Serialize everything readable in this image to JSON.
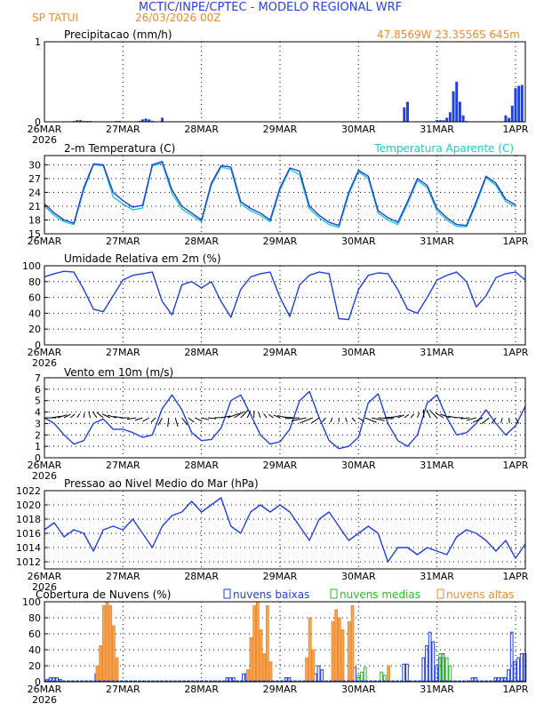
{
  "header": {
    "title": "MCTIC/INPE/CPTEC - MODELO REGIONAL WRF",
    "location": "SP TATUI",
    "run": "26/03/2026 00Z",
    "coords": "47.8569W 23.3556S 645m"
  },
  "dates": [
    "26MAR",
    "27MAR",
    "28MAR",
    "29MAR",
    "30MAR",
    "31MAR",
    "1APR"
  ],
  "year": "2026",
  "colors": {
    "blue": "#1f3fe0",
    "orange": "#f08a2a",
    "green": "#22c022",
    "cyan": "#20c8c8",
    "title": "#2a3ee8"
  },
  "chart_data": [
    {
      "type": "bar",
      "title": "Precipitacao (mm/h)",
      "ylim": [
        0,
        1
      ],
      "yticks": [
        0,
        1
      ],
      "x_unit": "hours since 26MAR 00Z",
      "x": [
        9,
        10,
        11,
        12,
        13,
        14,
        15,
        22,
        23,
        29,
        30,
        31,
        32,
        33,
        36,
        110,
        111,
        120,
        121,
        122,
        123,
        124,
        125,
        126,
        127,
        128,
        129,
        141,
        142,
        143,
        144,
        145,
        146
      ],
      "values": [
        0.01,
        0.02,
        0.02,
        0.01,
        0.01,
        0.01,
        0.0,
        0.01,
        0.01,
        0.01,
        0.03,
        0.04,
        0.03,
        0.01,
        0.05,
        0.18,
        0.25,
        0.02,
        0.02,
        0.02,
        0.05,
        0.12,
        0.38,
        0.5,
        0.25,
        0.08,
        0.01,
        0.08,
        0.05,
        0.2,
        0.42,
        0.45,
        0.46
      ]
    },
    {
      "type": "line",
      "title": "2-m Temperatura (C)",
      "ylim": [
        15,
        32
      ],
      "yticks": [
        15,
        18,
        21,
        24,
        27,
        30
      ],
      "x": [
        0,
        3,
        6,
        9,
        12,
        15,
        18,
        21,
        24,
        27,
        30,
        33,
        36,
        39,
        42,
        45,
        48,
        51,
        54,
        57,
        60,
        63,
        66,
        69,
        72,
        75,
        78,
        81,
        84,
        87,
        90,
        93,
        96,
        99,
        102,
        105,
        108,
        111,
        114,
        117,
        120,
        123,
        126,
        129,
        132,
        135,
        138,
        141,
        144
      ],
      "series": [
        {
          "name": "2-m Temperatura (C)",
          "color": "#1f3fe0",
          "values": [
            21.5,
            19.5,
            18.0,
            17.3,
            25.0,
            30.2,
            30.0,
            24.0,
            22.2,
            20.8,
            21.2,
            30.0,
            30.7,
            24.5,
            21.0,
            19.5,
            18.0,
            26.0,
            29.8,
            29.5,
            22.0,
            20.5,
            19.5,
            18.0,
            25.0,
            29.3,
            28.6,
            21.0,
            19.0,
            17.5,
            16.8,
            24.0,
            28.8,
            27.5,
            20.0,
            18.5,
            17.5,
            22.0,
            27.0,
            25.5,
            20.5,
            18.5,
            17.0,
            16.8,
            22.0,
            27.5,
            26.0,
            22.5,
            21.3
          ]
        },
        {
          "name": "Temperatura Aparente (C)",
          "color": "#20c8c8",
          "values": [
            21.0,
            19.0,
            17.6,
            17.0,
            24.5,
            30.0,
            29.8,
            23.0,
            21.5,
            20.2,
            20.6,
            29.8,
            30.3,
            23.8,
            20.4,
            19.0,
            17.6,
            25.5,
            29.5,
            29.0,
            21.5,
            20.0,
            19.0,
            17.6,
            24.5,
            29.0,
            27.8,
            20.4,
            18.5,
            17.0,
            16.4,
            23.5,
            28.5,
            27.0,
            19.5,
            18.0,
            17.0,
            21.5,
            26.6,
            25.0,
            20.0,
            18.0,
            16.6,
            16.5,
            21.5,
            27.2,
            25.5,
            22.0,
            20.9
          ]
        }
      ]
    },
    {
      "type": "line",
      "title": "Umidade Relativa em 2m (%)",
      "ylim": [
        0,
        100
      ],
      "yticks": [
        0,
        20,
        40,
        60,
        80,
        100
      ],
      "x": [
        0,
        3,
        6,
        9,
        12,
        15,
        18,
        21,
        24,
        27,
        30,
        33,
        36,
        39,
        42,
        45,
        48,
        51,
        54,
        57,
        60,
        63,
        66,
        69,
        72,
        75,
        78,
        81,
        84,
        87,
        90,
        93,
        96,
        99,
        102,
        105,
        108,
        111,
        114,
        117,
        120,
        123,
        126,
        129,
        132,
        135,
        138,
        141,
        144,
        147
      ],
      "series": [
        {
          "name": "Umidade Relativa",
          "color": "#1f3fe0",
          "values": [
            86,
            90,
            93,
            92,
            70,
            45,
            42,
            62,
            82,
            88,
            90,
            92,
            55,
            38,
            76,
            80,
            72,
            80,
            55,
            35,
            70,
            86,
            90,
            92,
            60,
            36,
            76,
            88,
            92,
            90,
            33,
            32,
            70,
            88,
            91,
            90,
            70,
            45,
            40,
            60,
            82,
            88,
            92,
            80,
            48,
            62,
            85,
            90,
            92,
            82
          ]
        }
      ]
    },
    {
      "type": "line",
      "title": "Vento em 10m (m/s)",
      "ylim": [
        0,
        7
      ],
      "yticks": [
        0,
        1,
        2,
        3,
        4,
        5,
        6,
        7
      ],
      "x": [
        0,
        3,
        6,
        9,
        12,
        15,
        18,
        21,
        24,
        27,
        30,
        33,
        36,
        39,
        42,
        45,
        48,
        51,
        54,
        57,
        60,
        63,
        66,
        69,
        72,
        75,
        78,
        81,
        84,
        87,
        90,
        93,
        96,
        99,
        102,
        105,
        108,
        111,
        114,
        117,
        120,
        123,
        126,
        129,
        132,
        135,
        138,
        141,
        144,
        147
      ],
      "series": [
        {
          "name": "Vento em 10m",
          "color": "#1f3fe0",
          "values": [
            3.5,
            3.0,
            2.0,
            1.2,
            1.5,
            3.0,
            3.4,
            2.5,
            2.5,
            2.2,
            1.8,
            2.0,
            4.3,
            5.5,
            4.2,
            2.2,
            1.5,
            1.6,
            2.6,
            5.0,
            5.5,
            3.8,
            2.0,
            1.2,
            1.4,
            2.5,
            5.0,
            5.8,
            3.5,
            1.5,
            0.8,
            1.0,
            1.8,
            4.8,
            5.6,
            3.0,
            1.5,
            1.0,
            2.0,
            4.8,
            5.5,
            3.5,
            2.0,
            2.2,
            3.0,
            4.2,
            3.0,
            2.0,
            2.8,
            4.5
          ]
        }
      ]
    },
    {
      "type": "line",
      "title": "Pressao ao Nivel Medio do Mar (hPa)",
      "ylim": [
        1011,
        1022
      ],
      "yticks": [
        1012,
        1014,
        1016,
        1018,
        1020,
        1022
      ],
      "x": [
        0,
        3,
        6,
        9,
        12,
        15,
        18,
        21,
        24,
        27,
        30,
        33,
        36,
        39,
        42,
        45,
        48,
        51,
        54,
        57,
        60,
        63,
        66,
        69,
        72,
        75,
        78,
        81,
        84,
        87,
        90,
        93,
        96,
        99,
        102,
        105,
        108,
        111,
        114,
        117,
        120,
        123,
        126,
        129,
        132,
        135,
        138,
        141,
        144,
        147
      ],
      "series": [
        {
          "name": "Pressao",
          "color": "#1f3fe0",
          "values": [
            1016.5,
            1017.5,
            1015.5,
            1016.5,
            1016.0,
            1013.5,
            1016.5,
            1017.0,
            1016.5,
            1018.0,
            1016.0,
            1014.0,
            1017.0,
            1018.5,
            1019.0,
            1020.5,
            1019.0,
            1020.0,
            1021.0,
            1017.0,
            1016.0,
            1019.0,
            1020.0,
            1019.0,
            1020.0,
            1019.0,
            1017.0,
            1015.0,
            1018.0,
            1019.0,
            1017.0,
            1015.0,
            1016.0,
            1017.0,
            1016.0,
            1012.0,
            1014.0,
            1014.0,
            1013.0,
            1014.0,
            1013.5,
            1013.0,
            1015.5,
            1016.5,
            1016.0,
            1015.0,
            1013.5,
            1015.0,
            1012.5,
            1014.5
          ]
        }
      ]
    },
    {
      "type": "bar",
      "title": "Cobertura de Nuvens (%)",
      "ylim": [
        0,
        100
      ],
      "yticks": [
        0,
        20,
        40,
        60,
        80,
        100
      ],
      "x_unit": "hours since 26MAR 00Z",
      "series": [
        {
          "name": "nuvens baixas",
          "color": "#1f3fe0",
          "x": [
            1,
            2,
            3,
            4,
            5,
            16,
            17,
            18,
            20,
            21,
            56,
            57,
            58,
            61,
            62,
            74,
            75,
            83,
            84,
            85,
            91,
            94,
            95,
            110,
            111,
            116,
            117,
            118,
            119,
            120,
            121,
            122,
            131,
            132,
            138,
            139,
            140,
            141,
            142,
            143,
            144,
            145,
            146,
            147
          ],
          "values": [
            3,
            5,
            5,
            5,
            3,
            10,
            18,
            22,
            22,
            18,
            5,
            5,
            5,
            10,
            10,
            5,
            5,
            10,
            20,
            15,
            30,
            18,
            18,
            22,
            22,
            30,
            45,
            62,
            50,
            20,
            30,
            35,
            5,
            5,
            5,
            5,
            5,
            5,
            15,
            62,
            25,
            30,
            35,
            35
          ]
        },
        {
          "name": "nuvens medias",
          "color": "#22c022",
          "x": [
            96,
            97,
            98,
            103,
            104,
            121,
            122,
            123,
            124
          ],
          "values": [
            8,
            12,
            18,
            12,
            8,
            35,
            30,
            30,
            20
          ]
        },
        {
          "name": "nuvens altas",
          "color": "#f08a2a",
          "x": [
            16,
            17,
            18,
            19,
            20,
            21,
            22,
            62,
            63,
            64,
            65,
            66,
            67,
            68,
            69,
            80,
            81,
            82,
            88,
            89,
            90,
            91,
            93,
            94,
            105
          ],
          "values": [
            20,
            45,
            95,
            100,
            95,
            70,
            30,
            15,
            55,
            95,
            100,
            65,
            35,
            95,
            25,
            30,
            80,
            40,
            75,
            90,
            80,
            65,
            75,
            95,
            20
          ]
        }
      ]
    }
  ]
}
